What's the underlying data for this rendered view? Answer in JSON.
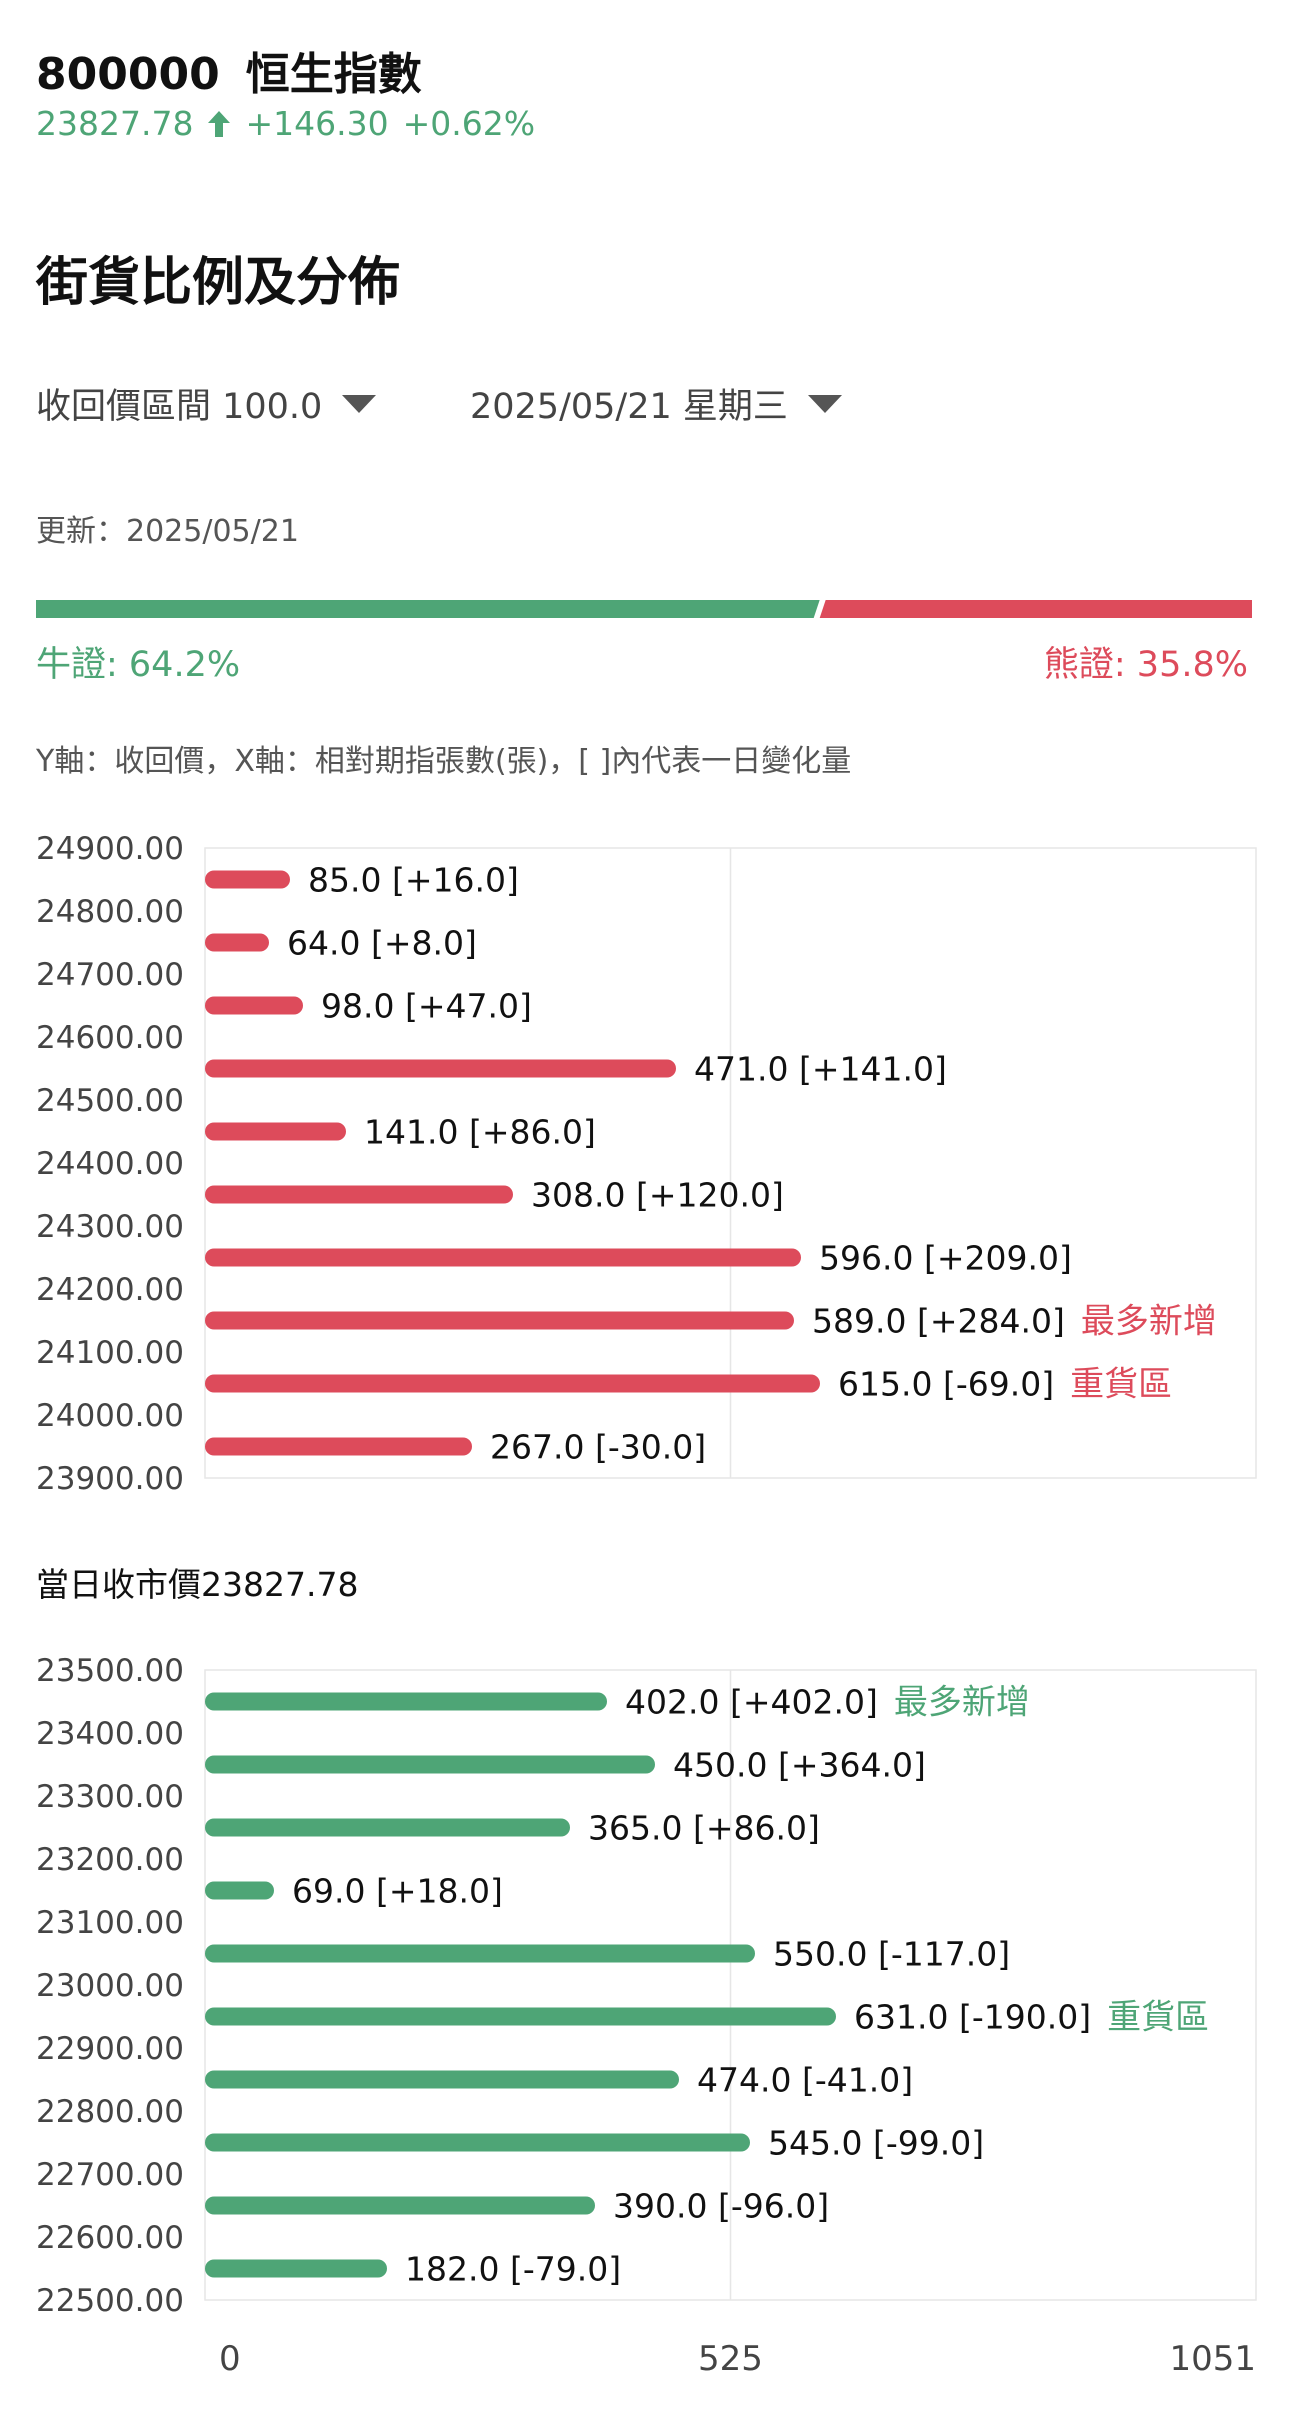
{
  "header": {
    "code": "800000",
    "name": "恒生指數",
    "price": "23827.78",
    "change": "+146.30",
    "change_pct": "+0.62%",
    "up_color": "#4ea576"
  },
  "section_title": "街貨比例及分佈",
  "filters": {
    "range_label": "收回價區間 100.0",
    "date_label": "2025/05/21 星期三"
  },
  "update_text": "更新：2025/05/21",
  "ratio": {
    "bull_label": "牛證: 64.2%",
    "bear_label": "熊證: 35.8%",
    "bull_pct": 64.2,
    "bear_pct": 35.8,
    "bull_color": "#4ea576",
    "bear_color": "#dd4b5b"
  },
  "axis_note": "Y軸：收回價，X軸：相對期指張數(張)，[ ]內代表一日變化量",
  "close_price_text": "當日收市價23827.78",
  "chart_data": [
    {
      "type": "bar",
      "orientation": "horizontal",
      "series_color": "#dd4b5b",
      "ylabels": [
        "24900.00",
        "24800.00",
        "24700.00",
        "24600.00",
        "24500.00",
        "24400.00",
        "24300.00",
        "24200.00",
        "24100.00",
        "24000.00",
        "23900.00"
      ],
      "bars": [
        {
          "value": 85.0,
          "label": "85.0 [+16.0]",
          "tag": ""
        },
        {
          "value": 64.0,
          "label": "64.0 [+8.0]",
          "tag": ""
        },
        {
          "value": 98.0,
          "label": "98.0 [+47.0]",
          "tag": ""
        },
        {
          "value": 471.0,
          "label": "471.0 [+141.0]",
          "tag": ""
        },
        {
          "value": 141.0,
          "label": "141.0 [+86.0]",
          "tag": ""
        },
        {
          "value": 308.0,
          "label": "308.0 [+120.0]",
          "tag": ""
        },
        {
          "value": 596.0,
          "label": "596.0 [+209.0]",
          "tag": ""
        },
        {
          "value": 589.0,
          "label": "589.0 [+284.0]",
          "tag": "最多新增"
        },
        {
          "value": 615.0,
          "label": "615.0 [-69.0]",
          "tag": "重貨區"
        },
        {
          "value": 267.0,
          "label": "267.0 [-30.0]",
          "tag": ""
        }
      ],
      "xlim": [
        0,
        1051
      ]
    },
    {
      "type": "bar",
      "orientation": "horizontal",
      "series_color": "#4ea576",
      "ylabels": [
        "23500.00",
        "23400.00",
        "23300.00",
        "23200.00",
        "23100.00",
        "23000.00",
        "22900.00",
        "22800.00",
        "22700.00",
        "22600.00",
        "22500.00"
      ],
      "bars": [
        {
          "value": 402.0,
          "label": "402.0 [+402.0]",
          "tag": "最多新增"
        },
        {
          "value": 450.0,
          "label": "450.0 [+364.0]",
          "tag": ""
        },
        {
          "value": 365.0,
          "label": "365.0 [+86.0]",
          "tag": ""
        },
        {
          "value": 69.0,
          "label": "69.0 [+18.0]",
          "tag": ""
        },
        {
          "value": 550.0,
          "label": "550.0 [-117.0]",
          "tag": ""
        },
        {
          "value": 631.0,
          "label": "631.0 [-190.0]",
          "tag": "重貨區"
        },
        {
          "value": 474.0,
          "label": "474.0 [-41.0]",
          "tag": ""
        },
        {
          "value": 545.0,
          "label": "545.0 [-99.0]",
          "tag": ""
        },
        {
          "value": 390.0,
          "label": "390.0 [-96.0]",
          "tag": ""
        },
        {
          "value": 182.0,
          "label": "182.0 [-79.0]",
          "tag": ""
        }
      ],
      "xlim": [
        0,
        1051
      ],
      "xticks": [
        "0",
        "525",
        "1051"
      ]
    }
  ]
}
